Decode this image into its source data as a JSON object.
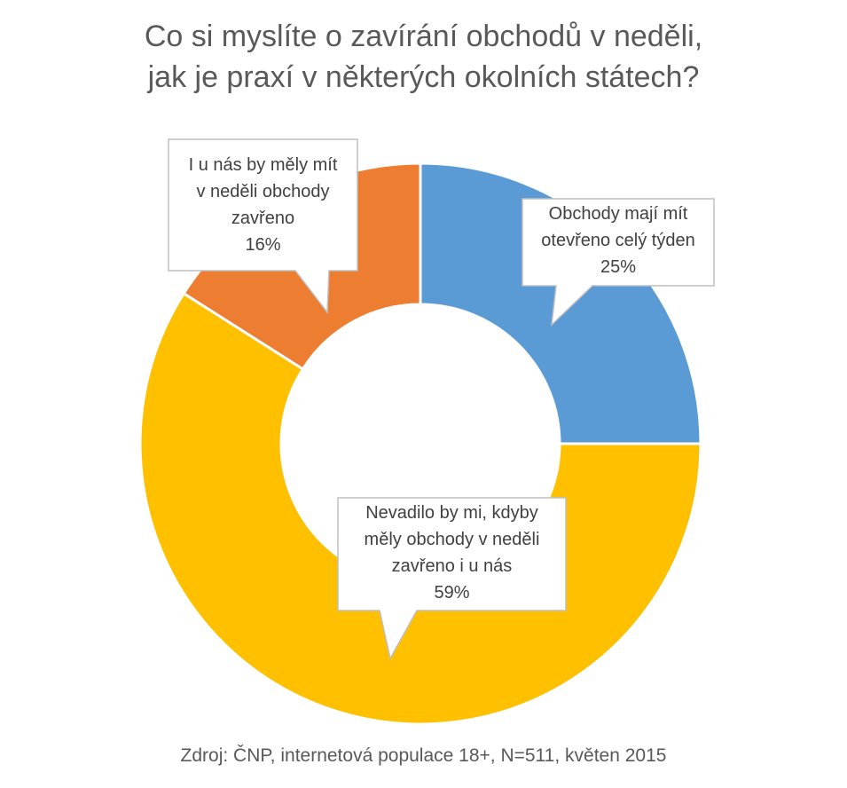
{
  "chart_title": {
    "line1": "Co si myslíte o zavírání obchodů v neděli,",
    "line2": "jak je praxí v některých okolních státech?"
  },
  "source": "Zdroj: ČNP, internetová populace 18+, N=511, květen 2015",
  "chart_data": {
    "type": "pie",
    "donut": true,
    "title": "Co si myslíte o zavírání obchodů v neděli, jak je praxí v některých okolních státech?",
    "slices": [
      {
        "label_lines": [
          "Obchody mají mít",
          "otevřeno celý týden"
        ],
        "value": 25,
        "value_label": "25%",
        "color": "#5B9BD5"
      },
      {
        "label_lines": [
          "Nevadilo by mi, kdyby",
          "měly obchody v neděli",
          "zavřeno i u nás"
        ],
        "value": 59,
        "value_label": "59%",
        "color": "#FFC000"
      },
      {
        "label_lines": [
          "I u nás by měly mít",
          "v neděli obchody",
          "zavřeno"
        ],
        "value": 16,
        "value_label": "16%",
        "color": "#ED7D31"
      }
    ]
  }
}
